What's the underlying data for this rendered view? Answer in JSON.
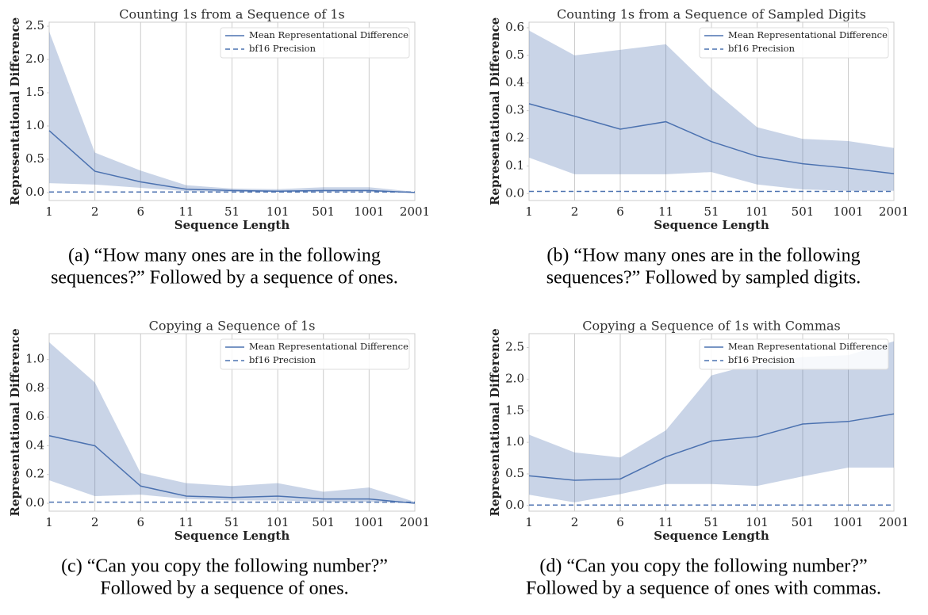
{
  "chart_data": [
    {
      "type": "line",
      "title": "Counting 1s from a Sequence of 1s",
      "xlabel": "Sequence Length",
      "ylabel": "Representational Difference",
      "categories": [
        "1",
        "2",
        "6",
        "11",
        "51",
        "101",
        "501",
        "1001",
        "2001"
      ],
      "series": [
        {
          "name": "Mean Representational Difference",
          "color": "#4c72b0",
          "style": "solid",
          "values": [
            0.93,
            0.32,
            0.16,
            0.05,
            0.03,
            0.02,
            0.03,
            0.03,
            0.0
          ],
          "lower": [
            0.14,
            0.12,
            0.07,
            0.02,
            0.01,
            0.01,
            0.01,
            0.01,
            0.0
          ],
          "upper": [
            2.42,
            0.6,
            0.33,
            0.11,
            0.06,
            0.05,
            0.08,
            0.08,
            0.01
          ]
        },
        {
          "name": "bf16 Precision",
          "color": "#4c72b0",
          "style": "dashed",
          "values": [
            0.008,
            0.008,
            0.008,
            0.008,
            0.008,
            0.008,
            0.008,
            0.008,
            0.008
          ]
        }
      ],
      "ylim": [
        -0.12,
        2.56
      ],
      "yticks": [
        {
          "value": 0,
          "label": "0.0"
        },
        0.5,
        {
          "value": 1,
          "label": "1.0"
        },
        1.5,
        {
          "value": 2,
          "label": "2.0"
        },
        2.5
      ],
      "grid": true,
      "legend": "upper right",
      "caption": [
        "(a) “How many ones are in the following",
        "sequences?” Followed by a sequence of ones."
      ]
    },
    {
      "type": "line",
      "title": "Counting 1s from a Sequence of Sampled Digits",
      "xlabel": "Sequence Length",
      "ylabel": "Representational Difference",
      "categories": [
        "1",
        "2",
        "6",
        "11",
        "51",
        "101",
        "501",
        "1001",
        "2001"
      ],
      "series": [
        {
          "name": "Mean Representational Difference",
          "color": "#4c72b0",
          "style": "solid",
          "values": [
            0.325,
            0.28,
            0.233,
            0.26,
            0.188,
            0.135,
            0.108,
            0.092,
            0.072
          ],
          "lower": [
            0.13,
            0.07,
            0.07,
            0.07,
            0.078,
            0.033,
            0.015,
            0.01,
            0.01
          ],
          "upper": [
            0.59,
            0.5,
            0.52,
            0.54,
            0.38,
            0.24,
            0.198,
            0.19,
            0.165
          ]
        },
        {
          "name": "bf16 Precision",
          "color": "#4c72b0",
          "style": "dashed",
          "values": [
            0.008,
            0.008,
            0.008,
            0.008,
            0.008,
            0.008,
            0.008,
            0.008,
            0.008
          ]
        }
      ],
      "ylim": [
        -0.025,
        0.62
      ],
      "yticks": [
        {
          "value": 0,
          "label": "0.0"
        },
        0.1,
        0.2,
        0.3,
        0.4,
        0.5,
        0.6
      ],
      "grid": true,
      "legend": "upper right",
      "caption": [
        "(b) “How many ones are in the following",
        "sequences?” Followed by sampled digits."
      ]
    },
    {
      "type": "line",
      "title": "Copying a Sequence of 1s",
      "xlabel": "Sequence Length",
      "ylabel": "Representational Difference",
      "categories": [
        "1",
        "2",
        "6",
        "11",
        "51",
        "101",
        "501",
        "1001",
        "2001"
      ],
      "series": [
        {
          "name": "Mean Representational Difference",
          "color": "#4c72b0",
          "style": "solid",
          "values": [
            0.47,
            0.4,
            0.12,
            0.05,
            0.04,
            0.05,
            0.03,
            0.03,
            0.0
          ],
          "lower": [
            0.16,
            0.05,
            0.06,
            0.03,
            0.02,
            0.02,
            0.01,
            0.01,
            0.0
          ],
          "upper": [
            1.12,
            0.84,
            0.21,
            0.14,
            0.12,
            0.14,
            0.08,
            0.11,
            0.01
          ]
        },
        {
          "name": "bf16 Precision",
          "color": "#4c72b0",
          "style": "dashed",
          "values": [
            0.008,
            0.008,
            0.008,
            0.008,
            0.008,
            0.008,
            0.008,
            0.008,
            0.008
          ]
        }
      ],
      "ylim": [
        -0.055,
        1.18
      ],
      "yticks": [
        {
          "value": 0,
          "label": "0.0"
        },
        0.2,
        0.4,
        0.6,
        0.8,
        {
          "value": 1,
          "label": "1.0"
        }
      ],
      "grid": true,
      "legend": "upper right",
      "caption": [
        "(c) “Can you copy the following number?”",
        "Followed by a sequence of ones."
      ]
    },
    {
      "type": "line",
      "title": "Copying a Sequence of 1s with Commas",
      "xlabel": "Sequence Length",
      "ylabel": "Representational Difference",
      "categories": [
        "1",
        "2",
        "6",
        "11",
        "51",
        "101",
        "501",
        "1001",
        "2001"
      ],
      "series": [
        {
          "name": "Mean Representational Difference",
          "color": "#4c72b0",
          "style": "solid",
          "values": [
            0.47,
            0.4,
            0.42,
            0.77,
            1.02,
            1.09,
            1.29,
            1.33,
            1.45
          ],
          "lower": [
            0.17,
            0.05,
            0.18,
            0.34,
            0.34,
            0.31,
            0.46,
            0.6,
            0.6
          ],
          "upper": [
            1.12,
            0.84,
            0.76,
            1.19,
            2.06,
            2.25,
            2.35,
            2.38,
            2.6
          ]
        },
        {
          "name": "bf16 Precision",
          "color": "#4c72b0",
          "style": "dashed",
          "values": [
            0.008,
            0.008,
            0.008,
            0.008,
            0.008,
            0.008,
            0.008,
            0.008,
            0.008
          ]
        }
      ],
      "ylim": [
        -0.09,
        2.72
      ],
      "yticks": [
        {
          "value": 0,
          "label": "0.0"
        },
        0.5,
        {
          "value": 1,
          "label": "1.0"
        },
        1.5,
        {
          "value": 2,
          "label": "2.0"
        },
        2.5
      ],
      "grid": true,
      "legend": "upper right",
      "caption": [
        "(d) “Can you copy the following number?”",
        "Followed by a sequence of ones with commas."
      ]
    }
  ]
}
